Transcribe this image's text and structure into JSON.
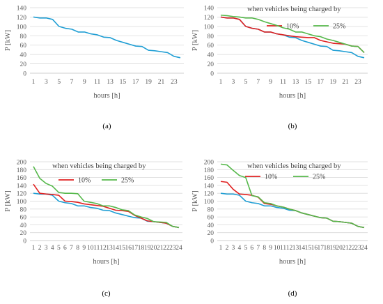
{
  "chart_data": [
    {
      "type": "line",
      "panel_label": "(a)",
      "xlabel": "hours [h]",
      "ylabel": "P [kW]",
      "ylim": [
        0,
        140
      ],
      "yticks": [
        0,
        20,
        40,
        60,
        80,
        100,
        120,
        140
      ],
      "x": [
        1,
        2,
        3,
        4,
        5,
        6,
        7,
        8,
        9,
        10,
        11,
        12,
        13,
        14,
        15,
        16,
        17,
        18,
        19,
        20,
        21,
        22,
        23,
        24
      ],
      "xtick_labels": [
        1,
        3,
        5,
        7,
        9,
        11,
        13,
        15,
        17,
        19,
        21,
        23
      ],
      "grid": true,
      "legend_title": "",
      "series": [
        {
          "name": "",
          "color": "#1f9ed4",
          "values": [
            120,
            118,
            118,
            115,
            100,
            96,
            94,
            88,
            88,
            84,
            82,
            77,
            76,
            70,
            66,
            62,
            58,
            57,
            49,
            48,
            46,
            44,
            36,
            33
          ]
        }
      ]
    },
    {
      "type": "line",
      "panel_label": "(b)",
      "xlabel": "hours [h]",
      "ylabel": "P [kW]",
      "ylim": [
        0,
        140
      ],
      "yticks": [
        0,
        20,
        40,
        60,
        80,
        100,
        120,
        140
      ],
      "x": [
        1,
        2,
        3,
        4,
        5,
        6,
        7,
        8,
        9,
        10,
        11,
        12,
        13,
        14,
        15,
        16,
        17,
        18,
        19,
        20,
        21,
        22,
        23,
        24
      ],
      "xtick_labels": [
        1,
        3,
        5,
        7,
        9,
        11,
        13,
        15,
        17,
        19,
        21,
        23
      ],
      "grid": true,
      "legend_title": "when vehicles being charged by",
      "series": [
        {
          "name": "",
          "color": "#1f9ed4",
          "values": [
            120,
            118,
            118,
            115,
            100,
            96,
            94,
            88,
            88,
            84,
            82,
            77,
            76,
            70,
            66,
            62,
            58,
            57,
            49,
            48,
            46,
            44,
            36,
            33
          ]
        },
        {
          "name": "10%",
          "color": "#e02020",
          "values": [
            120,
            118,
            118,
            115,
            100,
            96,
            94,
            88,
            88,
            84,
            82,
            80,
            78,
            77,
            76,
            76,
            70,
            67,
            64,
            63,
            62,
            58,
            57,
            44
          ]
        },
        {
          "name": "25%",
          "color": "#55b84a",
          "values": [
            124,
            123,
            121,
            120,
            118,
            118,
            115,
            110,
            106,
            102,
            97,
            94,
            88,
            88,
            84,
            80,
            78,
            73,
            70,
            66,
            62,
            58,
            57,
            44
          ]
        }
      ]
    },
    {
      "type": "line",
      "panel_label": "(c)",
      "xlabel": "hours [h]",
      "ylabel": "P [kW]",
      "ylim": [
        0,
        200
      ],
      "yticks": [
        0,
        20,
        40,
        60,
        80,
        100,
        120,
        140,
        160,
        180,
        200
      ],
      "x": [
        1,
        2,
        3,
        4,
        5,
        6,
        7,
        8,
        9,
        10,
        11,
        12,
        13,
        14,
        15,
        16,
        17,
        18,
        19,
        20,
        21,
        22,
        23,
        24
      ],
      "xtick_labels": [
        1,
        2,
        3,
        4,
        5,
        6,
        7,
        8,
        9,
        10,
        11,
        12,
        13,
        14,
        15,
        16,
        17,
        18,
        19,
        20,
        21,
        22,
        23,
        24
      ],
      "grid": true,
      "legend_title": "when vehicles being charged by",
      "series": [
        {
          "name": "",
          "color": "#1f9ed4",
          "values": [
            120,
            118,
            118,
            115,
            100,
            96,
            94,
            88,
            88,
            84,
            82,
            77,
            76,
            70,
            66,
            62,
            58,
            57,
            49,
            48,
            46,
            44,
            36,
            33
          ]
        },
        {
          "name": "10%",
          "color": "#e02020",
          "values": [
            143,
            120,
            118,
            117,
            115,
            100,
            99,
            97,
            93,
            91,
            89,
            87,
            82,
            77,
            76,
            74,
            64,
            57,
            50,
            48,
            46,
            44,
            36,
            33
          ]
        },
        {
          "name": "25%",
          "color": "#55b84a",
          "values": [
            188,
            158,
            145,
            138,
            122,
            120,
            120,
            119,
            100,
            97,
            94,
            88,
            88,
            84,
            78,
            76,
            65,
            60,
            56,
            48,
            47,
            46,
            36,
            33
          ]
        }
      ]
    },
    {
      "type": "line",
      "panel_label": "(d)",
      "xlabel": "hours [h]",
      "ylabel": "P [kW]",
      "ylim": [
        0,
        200
      ],
      "yticks": [
        0,
        20,
        40,
        60,
        80,
        100,
        120,
        140,
        160,
        180,
        200
      ],
      "x": [
        1,
        2,
        3,
        4,
        5,
        6,
        7,
        8,
        9,
        10,
        11,
        12,
        13,
        14,
        15,
        16,
        17,
        18,
        19,
        20,
        21,
        22,
        23,
        24
      ],
      "xtick_labels": [
        1,
        2,
        3,
        4,
        5,
        6,
        7,
        8,
        9,
        10,
        11,
        12,
        13,
        14,
        15,
        16,
        17,
        18,
        19,
        20,
        21,
        22,
        23,
        24
      ],
      "grid": true,
      "legend_title": "when vehicles being charged by",
      "series": [
        {
          "name": "",
          "color": "#1f9ed4",
          "values": [
            120,
            118,
            118,
            115,
            100,
            96,
            94,
            88,
            88,
            84,
            82,
            77,
            76,
            70,
            66,
            62,
            58,
            57,
            49,
            48,
            46,
            44,
            36,
            33
          ]
        },
        {
          "name": "10%",
          "color": "#e02020",
          "values": [
            150,
            148,
            130,
            118,
            117,
            115,
            110,
            94,
            92,
            88,
            85,
            80,
            76,
            70,
            66,
            62,
            58,
            57,
            49,
            48,
            46,
            44,
            36,
            33
          ]
        },
        {
          "name": "25%",
          "color": "#55b84a",
          "values": [
            194,
            192,
            178,
            165,
            160,
            114,
            111,
            96,
            94,
            88,
            85,
            80,
            76,
            70,
            66,
            62,
            58,
            57,
            49,
            48,
            46,
            44,
            36,
            33
          ]
        }
      ]
    }
  ]
}
